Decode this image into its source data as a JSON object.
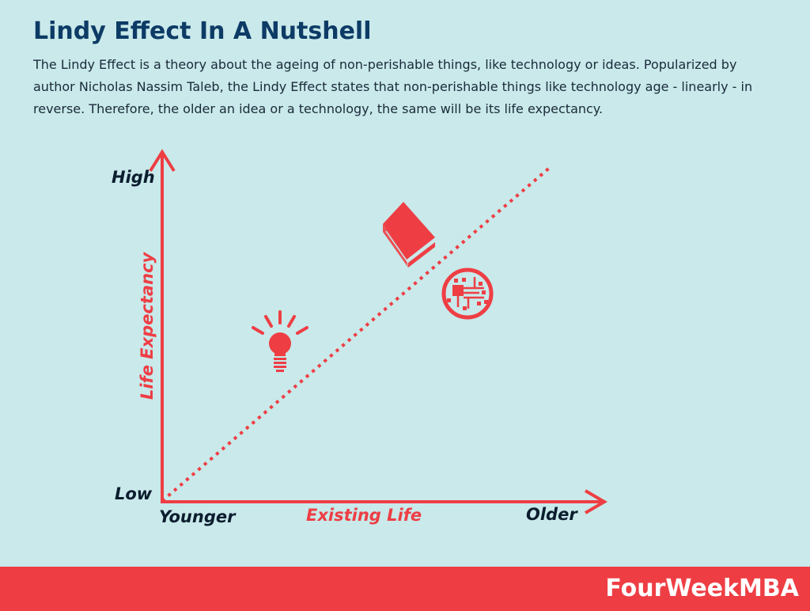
{
  "header": {
    "title": "Lindy Effect In A Nutshell",
    "description": "The Lindy Effect is a theory about the ageing of non-perishable things, like technology or ideas. Popularized by author Nicholas Nassim Taleb, the Lindy Effect states that non-perishable things like technology age - linearly - in reverse. Therefore, the older an idea or a technology, the same will be its life expectancy."
  },
  "diagram": {
    "y_axis_label": "Life Expectancy",
    "y_high": "High",
    "y_low": "Low",
    "x_axis_label": "Existing Life",
    "x_start": "Younger",
    "x_end": "Older",
    "icons": [
      "lightbulb-icon",
      "book-icon",
      "circuit-icon"
    ]
  },
  "colors": {
    "background": "#c9e9ea",
    "accent": "#ee3e44",
    "title": "#0d3b66"
  },
  "footer": {
    "brand": "FourWeekMBA"
  }
}
